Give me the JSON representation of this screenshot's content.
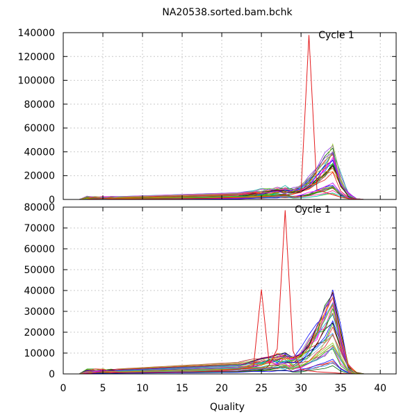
{
  "title": "NA20538.sorted.bam.bchk",
  "xlabel": "Quality",
  "xlim": [
    0,
    42
  ],
  "xticks": [
    0,
    5,
    10,
    15,
    20,
    25,
    30,
    35,
    40
  ],
  "colors": [
    "#e41a1c",
    "#00a000",
    "#0000ff",
    "#ff00ff",
    "#00bfbf",
    "#c8a000",
    "#000000",
    "#ff8000",
    "#a0a0a0",
    "#8a2be2",
    "#b22222",
    "#006400",
    "#1e90ff",
    "#ff1493",
    "#20b2aa",
    "#9acd32"
  ],
  "chart_data": [
    {
      "type": "line",
      "ylim": [
        0,
        140000
      ],
      "yticks": [
        0,
        20000,
        40000,
        60000,
        80000,
        100000,
        120000,
        140000
      ],
      "grid": true,
      "annotation": "Cycle 1",
      "highlight_series": {
        "x": [
          1,
          2,
          3,
          4,
          5,
          6,
          8,
          10,
          12,
          15,
          18,
          20,
          22,
          24,
          26,
          28,
          29,
          30,
          31,
          32,
          33,
          34,
          35,
          36,
          37,
          38
        ],
        "y": [
          0,
          0,
          200,
          500,
          800,
          600,
          500,
          500,
          600,
          700,
          900,
          1200,
          1500,
          1800,
          2500,
          3500,
          4500,
          6000,
          138000,
          8000,
          6000,
          4000,
          2000,
          800,
          300,
          0
        ]
      },
      "bundle_peak_range": [
        20000,
        47000
      ],
      "peak_quality": 34
    },
    {
      "type": "line",
      "ylim": [
        0,
        80000
      ],
      "yticks": [
        0,
        10000,
        20000,
        30000,
        40000,
        50000,
        60000,
        70000,
        80000
      ],
      "grid": true,
      "annotation": "Cycle 1",
      "highlight_series": {
        "x": [
          1,
          2,
          3,
          4,
          5,
          6,
          8,
          10,
          12,
          15,
          18,
          20,
          22,
          23,
          24,
          25,
          26,
          27,
          28,
          29,
          30,
          31,
          32,
          33,
          34,
          35,
          36,
          37,
          38
        ],
        "y": [
          0,
          0,
          200,
          600,
          1000,
          700,
          600,
          700,
          800,
          900,
          1200,
          1600,
          2200,
          2800,
          3500,
          40500,
          4500,
          12000,
          78500,
          11000,
          2000,
          1500,
          1000,
          800,
          600,
          300,
          100,
          0,
          0
        ]
      },
      "bundle_peak_range": [
        18000,
        43000
      ],
      "peak_quality": 34
    }
  ]
}
